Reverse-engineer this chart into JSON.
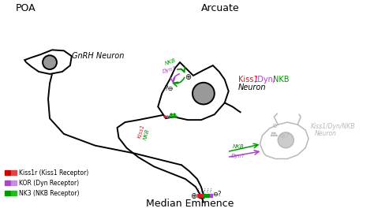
{
  "title_poa": "POA",
  "title_arcuate": "Arcuate",
  "title_median": "Median Eminence",
  "gnrh_label": "GnRH Neuron",
  "kiss1_label": "Kiss1",
  "dyn_label": "/Dyn/",
  "nkb_label": "NKB",
  "neuron_label": "Neuron",
  "kiss1dyn_gray1": "Kiss1/Dyn/NKB",
  "kiss1dyn_gray2": "Neuron",
  "legend_items": [
    {
      "colors": [
        "#cc0000",
        "#dd4444"
      ],
      "label": "Kiss1r (Kiss1 Receptor)"
    },
    {
      "colors": [
        "#aa44cc",
        "#cc88ee"
      ],
      "label": "KOR (Dyn Receptor)"
    },
    {
      "colors": [
        "#009900",
        "#22bb22"
      ],
      "label": "NK3 (NKB Receptor)"
    }
  ],
  "color_kiss1": "#cc2222",
  "color_dyn": "#aa44cc",
  "color_nkb": "#009900",
  "color_gray": "#aaaaaa",
  "bg_color": "#ffffff"
}
